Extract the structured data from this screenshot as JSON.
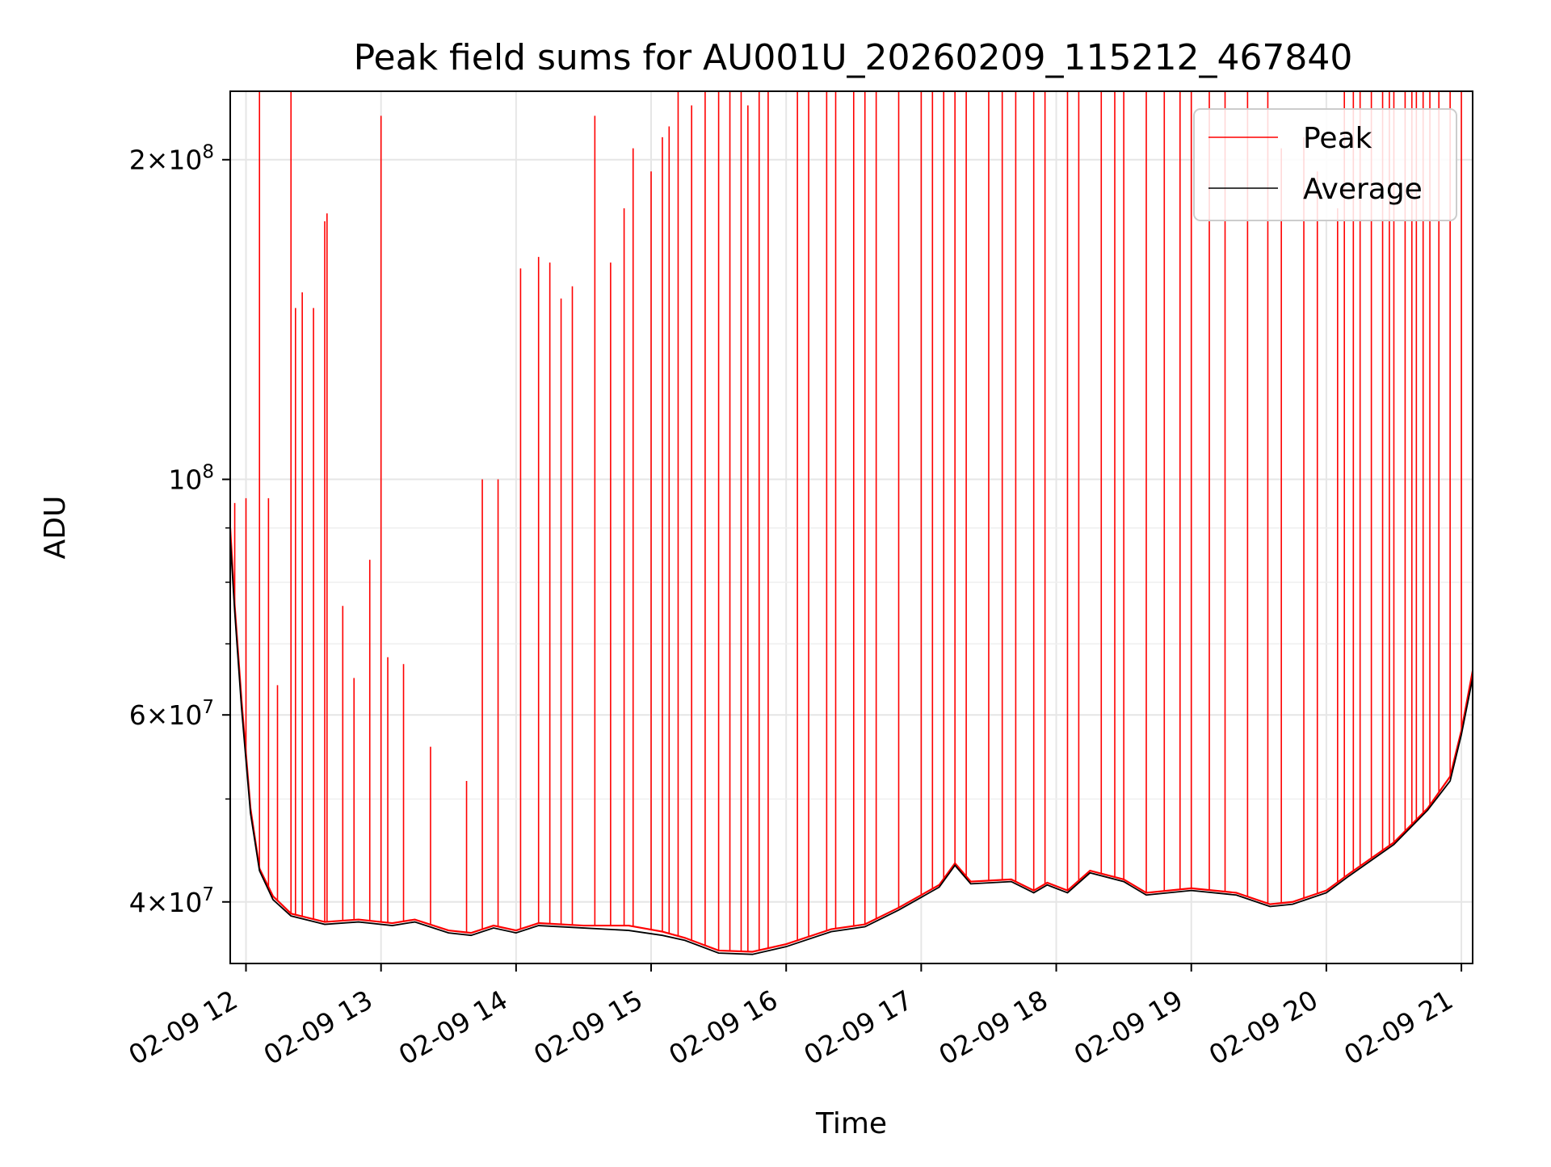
{
  "chart_data": {
    "type": "line",
    "title": "Peak field sums for AU001U_20260209_115212_467840",
    "xlabel": "Time",
    "ylabel": "ADU",
    "xscale": "time",
    "yscale": "log",
    "xlim": [
      "2026-02-09 11:53",
      "2026-02-09 21:05"
    ],
    "ylim": [
      35000000,
      232000000
    ],
    "grid": true,
    "legend_position": "top-right",
    "x_ticks": [
      {
        "value": "2026-02-09 12:00",
        "label": "02-09 12"
      },
      {
        "value": "2026-02-09 13:00",
        "label": "02-09 13"
      },
      {
        "value": "2026-02-09 14:00",
        "label": "02-09 14"
      },
      {
        "value": "2026-02-09 15:00",
        "label": "02-09 15"
      },
      {
        "value": "2026-02-09 16:00",
        "label": "02-09 16"
      },
      {
        "value": "2026-02-09 17:00",
        "label": "02-09 17"
      },
      {
        "value": "2026-02-09 18:00",
        "label": "02-09 18"
      },
      {
        "value": "2026-02-09 19:00",
        "label": "02-09 19"
      },
      {
        "value": "2026-02-09 20:00",
        "label": "02-09 20"
      },
      {
        "value": "2026-02-09 21:00",
        "label": "02-09 21"
      }
    ],
    "y_major_ticks": [
      {
        "value": 40000000,
        "mantissa": "4",
        "exponent": "7"
      },
      {
        "value": 60000000,
        "mantissa": "6",
        "exponent": "7"
      },
      {
        "value": 100000000,
        "mantissa": "",
        "exponent": "8"
      },
      {
        "value": 200000000,
        "mantissa": "2",
        "exponent": "8"
      }
    ],
    "y_minor_ticks": [
      50000000,
      70000000,
      80000000,
      90000000
    ],
    "series": [
      {
        "name": "Peak",
        "color": "#ff0000",
        "baseline": [
          [
            "2026-02-09 11:53",
            90000000
          ],
          [
            "2026-02-09 11:55",
            76000000
          ],
          [
            "2026-02-09 11:58",
            62000000
          ],
          [
            "2026-02-09 12:02",
            49000000
          ],
          [
            "2026-02-09 12:06",
            43000000
          ],
          [
            "2026-02-09 12:12",
            40500000
          ],
          [
            "2026-02-09 12:20",
            39000000
          ],
          [
            "2026-02-09 12:35",
            38300000
          ],
          [
            "2026-02-09 12:50",
            38500000
          ],
          [
            "2026-02-09 13:05",
            38200000
          ],
          [
            "2026-02-09 13:15",
            38500000
          ],
          [
            "2026-02-09 13:30",
            37600000
          ],
          [
            "2026-02-09 13:40",
            37400000
          ],
          [
            "2026-02-09 13:50",
            38000000
          ],
          [
            "2026-02-09 14:00",
            37600000
          ],
          [
            "2026-02-09 14:10",
            38200000
          ],
          [
            "2026-02-09 14:30",
            38000000
          ],
          [
            "2026-02-09 14:50",
            38000000
          ],
          [
            "2026-02-09 15:05",
            37500000
          ],
          [
            "2026-02-09 15:15",
            37000000
          ],
          [
            "2026-02-09 15:30",
            36000000
          ],
          [
            "2026-02-09 15:45",
            35900000
          ],
          [
            "2026-02-09 16:00",
            36500000
          ],
          [
            "2026-02-09 16:20",
            37700000
          ],
          [
            "2026-02-09 16:35",
            38100000
          ],
          [
            "2026-02-09 16:50",
            39500000
          ],
          [
            "2026-02-09 17:08",
            41500000
          ],
          [
            "2026-02-09 17:15",
            43500000
          ],
          [
            "2026-02-09 17:22",
            41800000
          ],
          [
            "2026-02-09 17:40",
            42000000
          ],
          [
            "2026-02-09 17:50",
            41000000
          ],
          [
            "2026-02-09 17:56",
            41700000
          ],
          [
            "2026-02-09 18:05",
            41000000
          ],
          [
            "2026-02-09 18:15",
            42800000
          ],
          [
            "2026-02-09 18:30",
            42000000
          ],
          [
            "2026-02-09 18:40",
            40800000
          ],
          [
            "2026-02-09 19:00",
            41200000
          ],
          [
            "2026-02-09 19:20",
            40800000
          ],
          [
            "2026-02-09 19:35",
            39800000
          ],
          [
            "2026-02-09 19:45",
            40000000
          ],
          [
            "2026-02-09 20:00",
            41000000
          ],
          [
            "2026-02-09 20:10",
            42500000
          ],
          [
            "2026-02-09 20:30",
            45500000
          ],
          [
            "2026-02-09 20:45",
            49000000
          ],
          [
            "2026-02-09 20:55",
            52500000
          ],
          [
            "2026-02-09 21:00",
            58000000
          ],
          [
            "2026-02-09 21:05",
            66000000
          ]
        ],
        "spikes": [
          [
            "2026-02-09 11:55",
            95000000
          ],
          [
            "2026-02-09 12:00",
            96000000
          ],
          [
            "2026-02-09 12:06",
            232000000
          ],
          [
            "2026-02-09 12:10",
            96000000
          ],
          [
            "2026-02-09 12:14",
            64000000
          ],
          [
            "2026-02-09 12:20",
            232000000
          ],
          [
            "2026-02-09 12:22",
            145000000
          ],
          [
            "2026-02-09 12:25",
            150000000
          ],
          [
            "2026-02-09 12:30",
            145000000
          ],
          [
            "2026-02-09 12:35",
            175000000
          ],
          [
            "2026-02-09 12:36",
            178000000
          ],
          [
            "2026-02-09 12:43",
            76000000
          ],
          [
            "2026-02-09 12:48",
            65000000
          ],
          [
            "2026-02-09 12:55",
            84000000
          ],
          [
            "2026-02-09 13:00",
            220000000
          ],
          [
            "2026-02-09 13:03",
            68000000
          ],
          [
            "2026-02-09 13:10",
            67000000
          ],
          [
            "2026-02-09 13:22",
            56000000
          ],
          [
            "2026-02-09 13:38",
            52000000
          ],
          [
            "2026-02-09 13:45",
            100000000
          ],
          [
            "2026-02-09 13:52",
            100000000
          ],
          [
            "2026-02-09 14:02",
            158000000
          ],
          [
            "2026-02-09 14:10",
            162000000
          ],
          [
            "2026-02-09 14:15",
            160000000
          ],
          [
            "2026-02-09 14:20",
            148000000
          ],
          [
            "2026-02-09 14:25",
            152000000
          ],
          [
            "2026-02-09 14:35",
            220000000
          ],
          [
            "2026-02-09 14:42",
            160000000
          ],
          [
            "2026-02-09 14:48",
            180000000
          ],
          [
            "2026-02-09 14:52",
            205000000
          ],
          [
            "2026-02-09 15:00",
            195000000
          ],
          [
            "2026-02-09 15:05",
            210000000
          ],
          [
            "2026-02-09 15:08",
            215000000
          ],
          [
            "2026-02-09 15:12",
            232000000
          ],
          [
            "2026-02-09 15:18",
            225000000
          ],
          [
            "2026-02-09 15:24",
            232000000
          ],
          [
            "2026-02-09 15:30",
            232000000
          ],
          [
            "2026-02-09 15:35",
            232000000
          ],
          [
            "2026-02-09 15:40",
            232000000
          ],
          [
            "2026-02-09 15:43",
            225000000
          ],
          [
            "2026-02-09 15:48",
            232000000
          ],
          [
            "2026-02-09 15:52",
            232000000
          ],
          [
            "2026-02-09 16:05",
            232000000
          ],
          [
            "2026-02-09 16:10",
            232000000
          ],
          [
            "2026-02-09 16:18",
            232000000
          ],
          [
            "2026-02-09 16:22",
            232000000
          ],
          [
            "2026-02-09 16:30",
            232000000
          ],
          [
            "2026-02-09 16:35",
            232000000
          ],
          [
            "2026-02-09 16:40",
            232000000
          ],
          [
            "2026-02-09 16:50",
            232000000
          ],
          [
            "2026-02-09 17:00",
            232000000
          ],
          [
            "2026-02-09 17:05",
            232000000
          ],
          [
            "2026-02-09 17:10",
            232000000
          ],
          [
            "2026-02-09 17:15",
            232000000
          ],
          [
            "2026-02-09 17:20",
            232000000
          ],
          [
            "2026-02-09 17:30",
            232000000
          ],
          [
            "2026-02-09 17:36",
            232000000
          ],
          [
            "2026-02-09 17:42",
            232000000
          ],
          [
            "2026-02-09 17:50",
            232000000
          ],
          [
            "2026-02-09 17:55",
            232000000
          ],
          [
            "2026-02-09 18:05",
            232000000
          ],
          [
            "2026-02-09 18:10",
            232000000
          ],
          [
            "2026-02-09 18:20",
            232000000
          ],
          [
            "2026-02-09 18:26",
            232000000
          ],
          [
            "2026-02-09 18:30",
            232000000
          ],
          [
            "2026-02-09 18:40",
            232000000
          ],
          [
            "2026-02-09 18:48",
            232000000
          ],
          [
            "2026-02-09 18:55",
            232000000
          ],
          [
            "2026-02-09 19:00",
            232000000
          ],
          [
            "2026-02-09 19:08",
            232000000
          ],
          [
            "2026-02-09 19:15",
            232000000
          ],
          [
            "2026-02-09 19:25",
            232000000
          ],
          [
            "2026-02-09 19:34",
            232000000
          ],
          [
            "2026-02-09 19:40",
            205000000
          ],
          [
            "2026-02-09 19:50",
            210000000
          ],
          [
            "2026-02-09 19:56",
            195000000
          ],
          [
            "2026-02-09 20:05",
            180000000
          ],
          [
            "2026-02-09 20:08",
            232000000
          ],
          [
            "2026-02-09 20:12",
            232000000
          ],
          [
            "2026-02-09 20:15",
            232000000
          ],
          [
            "2026-02-09 20:20",
            232000000
          ],
          [
            "2026-02-09 20:25",
            232000000
          ],
          [
            "2026-02-09 20:28",
            232000000
          ],
          [
            "2026-02-09 20:30",
            232000000
          ],
          [
            "2026-02-09 20:35",
            232000000
          ],
          [
            "2026-02-09 20:38",
            232000000
          ],
          [
            "2026-02-09 20:40",
            232000000
          ],
          [
            "2026-02-09 20:43",
            232000000
          ],
          [
            "2026-02-09 20:46",
            232000000
          ],
          [
            "2026-02-09 20:50",
            232000000
          ],
          [
            "2026-02-09 20:55",
            232000000
          ],
          [
            "2026-02-09 21:00",
            232000000
          ]
        ]
      },
      {
        "name": "Average",
        "color": "#000000",
        "points": [
          [
            "2026-02-09 11:53",
            88000000
          ],
          [
            "2026-02-09 11:55",
            75000000
          ],
          [
            "2026-02-09 11:58",
            61000000
          ],
          [
            "2026-02-09 12:02",
            48500000
          ],
          [
            "2026-02-09 12:06",
            42800000
          ],
          [
            "2026-02-09 12:12",
            40200000
          ],
          [
            "2026-02-09 12:20",
            38800000
          ],
          [
            "2026-02-09 12:35",
            38100000
          ],
          [
            "2026-02-09 12:50",
            38300000
          ],
          [
            "2026-02-09 13:05",
            38000000
          ],
          [
            "2026-02-09 13:15",
            38300000
          ],
          [
            "2026-02-09 13:30",
            37400000
          ],
          [
            "2026-02-09 13:40",
            37200000
          ],
          [
            "2026-02-09 13:50",
            37800000
          ],
          [
            "2026-02-09 14:00",
            37400000
          ],
          [
            "2026-02-09 14:10",
            38000000
          ],
          [
            "2026-02-09 14:30",
            37800000
          ],
          [
            "2026-02-09 14:50",
            37600000
          ],
          [
            "2026-02-09 15:05",
            37200000
          ],
          [
            "2026-02-09 15:15",
            36800000
          ],
          [
            "2026-02-09 15:30",
            35800000
          ],
          [
            "2026-02-09 15:45",
            35700000
          ],
          [
            "2026-02-09 16:00",
            36300000
          ],
          [
            "2026-02-09 16:20",
            37500000
          ],
          [
            "2026-02-09 16:35",
            37900000
          ],
          [
            "2026-02-09 16:50",
            39300000
          ],
          [
            "2026-02-09 17:08",
            41300000
          ],
          [
            "2026-02-09 17:15",
            43300000
          ],
          [
            "2026-02-09 17:22",
            41600000
          ],
          [
            "2026-02-09 17:40",
            41800000
          ],
          [
            "2026-02-09 17:50",
            40800000
          ],
          [
            "2026-02-09 17:56",
            41500000
          ],
          [
            "2026-02-09 18:05",
            40800000
          ],
          [
            "2026-02-09 18:15",
            42600000
          ],
          [
            "2026-02-09 18:30",
            41800000
          ],
          [
            "2026-02-09 18:40",
            40600000
          ],
          [
            "2026-02-09 19:00",
            41000000
          ],
          [
            "2026-02-09 19:20",
            40600000
          ],
          [
            "2026-02-09 19:35",
            39600000
          ],
          [
            "2026-02-09 19:45",
            39800000
          ],
          [
            "2026-02-09 20:00",
            40800000
          ],
          [
            "2026-02-09 20:10",
            42300000
          ],
          [
            "2026-02-09 20:30",
            45300000
          ],
          [
            "2026-02-09 20:45",
            48800000
          ],
          [
            "2026-02-09 20:55",
            52000000
          ],
          [
            "2026-02-09 21:00",
            57500000
          ],
          [
            "2026-02-09 21:05",
            65000000
          ]
        ]
      }
    ]
  }
}
